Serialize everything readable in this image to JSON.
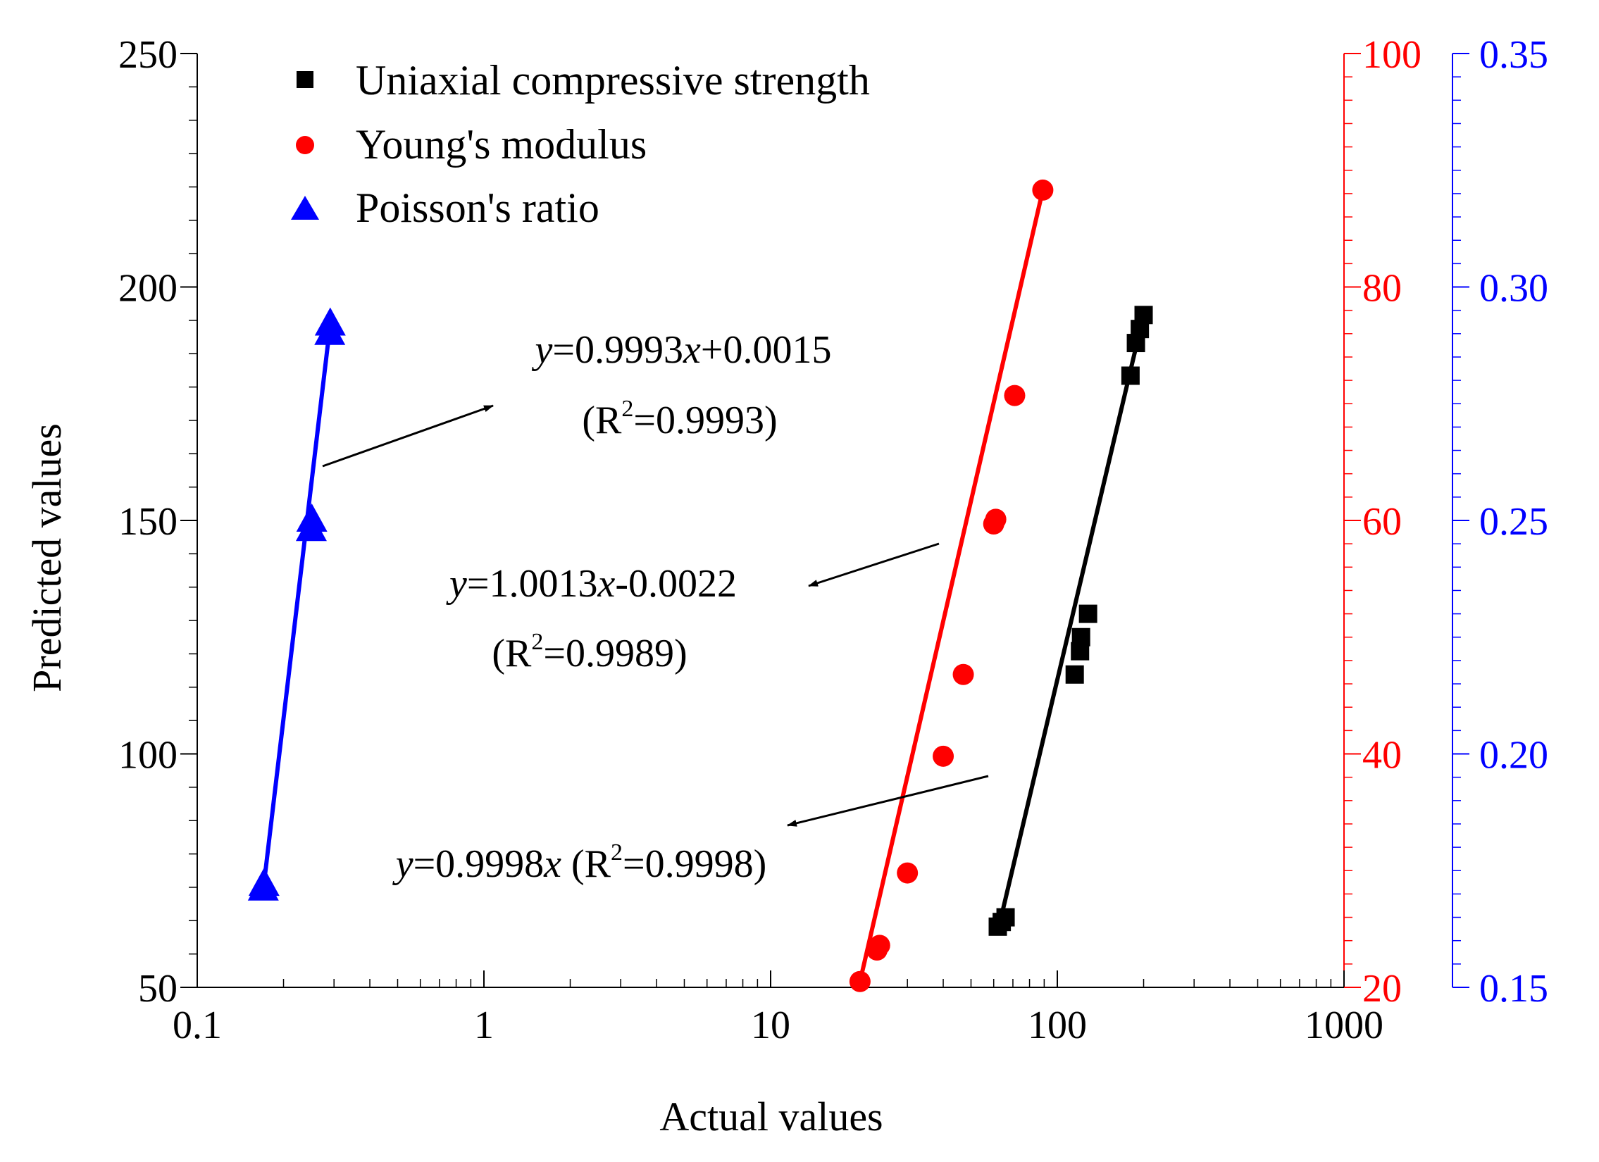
{
  "chart_data": {
    "type": "scatter",
    "xscale": "log",
    "xlim": [
      0.1,
      1000
    ],
    "xlabel": "Actual values",
    "ylabel": "Predicted values",
    "x_ticks": [
      {
        "value": 0.1,
        "label": "0.1"
      },
      {
        "value": 1,
        "label": "1"
      },
      {
        "value": 10,
        "label": "10"
      },
      {
        "value": 100,
        "label": "100"
      },
      {
        "value": 1000,
        "label": "1000"
      }
    ],
    "axes": {
      "left": {
        "color": "#000000",
        "lim": [
          50,
          250
        ],
        "ticks": [
          {
            "value": 50,
            "label": "50"
          },
          {
            "value": 100,
            "label": "100"
          },
          {
            "value": 150,
            "label": "150"
          },
          {
            "value": 200,
            "label": "200"
          },
          {
            "value": 250,
            "label": "250"
          }
        ]
      },
      "red": {
        "color": "#ff0000",
        "lim": [
          20,
          100
        ],
        "ticks": [
          {
            "value": 20,
            "label": "20"
          },
          {
            "value": 40,
            "label": "40"
          },
          {
            "value": 60,
            "label": "60"
          },
          {
            "value": 80,
            "label": "80"
          },
          {
            "value": 100,
            "label": "100"
          }
        ]
      },
      "blue": {
        "color": "#0000ff",
        "lim": [
          0.15,
          0.35
        ],
        "ticks": [
          {
            "value": 0.15,
            "label": "0.15"
          },
          {
            "value": 0.2,
            "label": "0.20"
          },
          {
            "value": 0.25,
            "label": "0.25"
          },
          {
            "value": 0.3,
            "label": "0.30"
          },
          {
            "value": 0.35,
            "label": "0.35"
          }
        ]
      }
    },
    "series": [
      {
        "name": "Uniaxial compressive strength",
        "marker": "square",
        "color": "#000000",
        "axis": "left",
        "points": [
          [
            62,
            63
          ],
          [
            64,
            64
          ],
          [
            66,
            65
          ],
          [
            115,
            117
          ],
          [
            120,
            122
          ],
          [
            121,
            125
          ],
          [
            128,
            130
          ],
          [
            180,
            181
          ],
          [
            188,
            188
          ],
          [
            194,
            191
          ],
          [
            200,
            194
          ]
        ],
        "fit": {
          "x": [
            62,
            200
          ],
          "y": [
            62,
            194
          ]
        }
      },
      {
        "name": "Young's modulus",
        "marker": "circle",
        "color": "#ff0000",
        "axis": "red",
        "points": [
          [
            20.5,
            20.5
          ],
          [
            23.5,
            23.2
          ],
          [
            24,
            23.6
          ],
          [
            30,
            29.8
          ],
          [
            40,
            39.8
          ],
          [
            47,
            46.8
          ],
          [
            60,
            59.7
          ],
          [
            61,
            60.1
          ],
          [
            71,
            70.7
          ],
          [
            89,
            88.3
          ]
        ],
        "fit": {
          "x": [
            20.5,
            89
          ],
          "y": [
            20.5,
            88.3
          ]
        }
      },
      {
        "name": "Poisson's ratio",
        "marker": "triangle",
        "color": "#0000ff",
        "axis": "blue",
        "points": [
          [
            0.17,
            0.171
          ],
          [
            0.171,
            0.172
          ],
          [
            0.25,
            0.248
          ],
          [
            0.251,
            0.25
          ],
          [
            0.29,
            0.29
          ],
          [
            0.291,
            0.292
          ]
        ],
        "fit": {
          "x": [
            0.17,
            0.291
          ],
          "y": [
            0.171,
            0.292
          ]
        }
      }
    ],
    "annotations": [
      {
        "eq_var": "y",
        "eq_mid": "=0.9993",
        "eq_x": "x",
        "eq_tail": "+0.0015",
        "r_open": "(R",
        "r_sup": "2",
        "r_value": "=0.9993)"
      },
      {
        "eq_var": "y",
        "eq_mid": "=1.0013",
        "eq_x": "x",
        "eq_tail": "-0.0022",
        "r_open": "(R",
        "r_sup": "2",
        "r_value": "=0.9989)"
      },
      {
        "eq_var": "y",
        "eq_mid": "=0.9998",
        "eq_x": "x",
        "r_open": " (R",
        "r_sup": "2",
        "r_value": "=0.9998)"
      }
    ]
  }
}
